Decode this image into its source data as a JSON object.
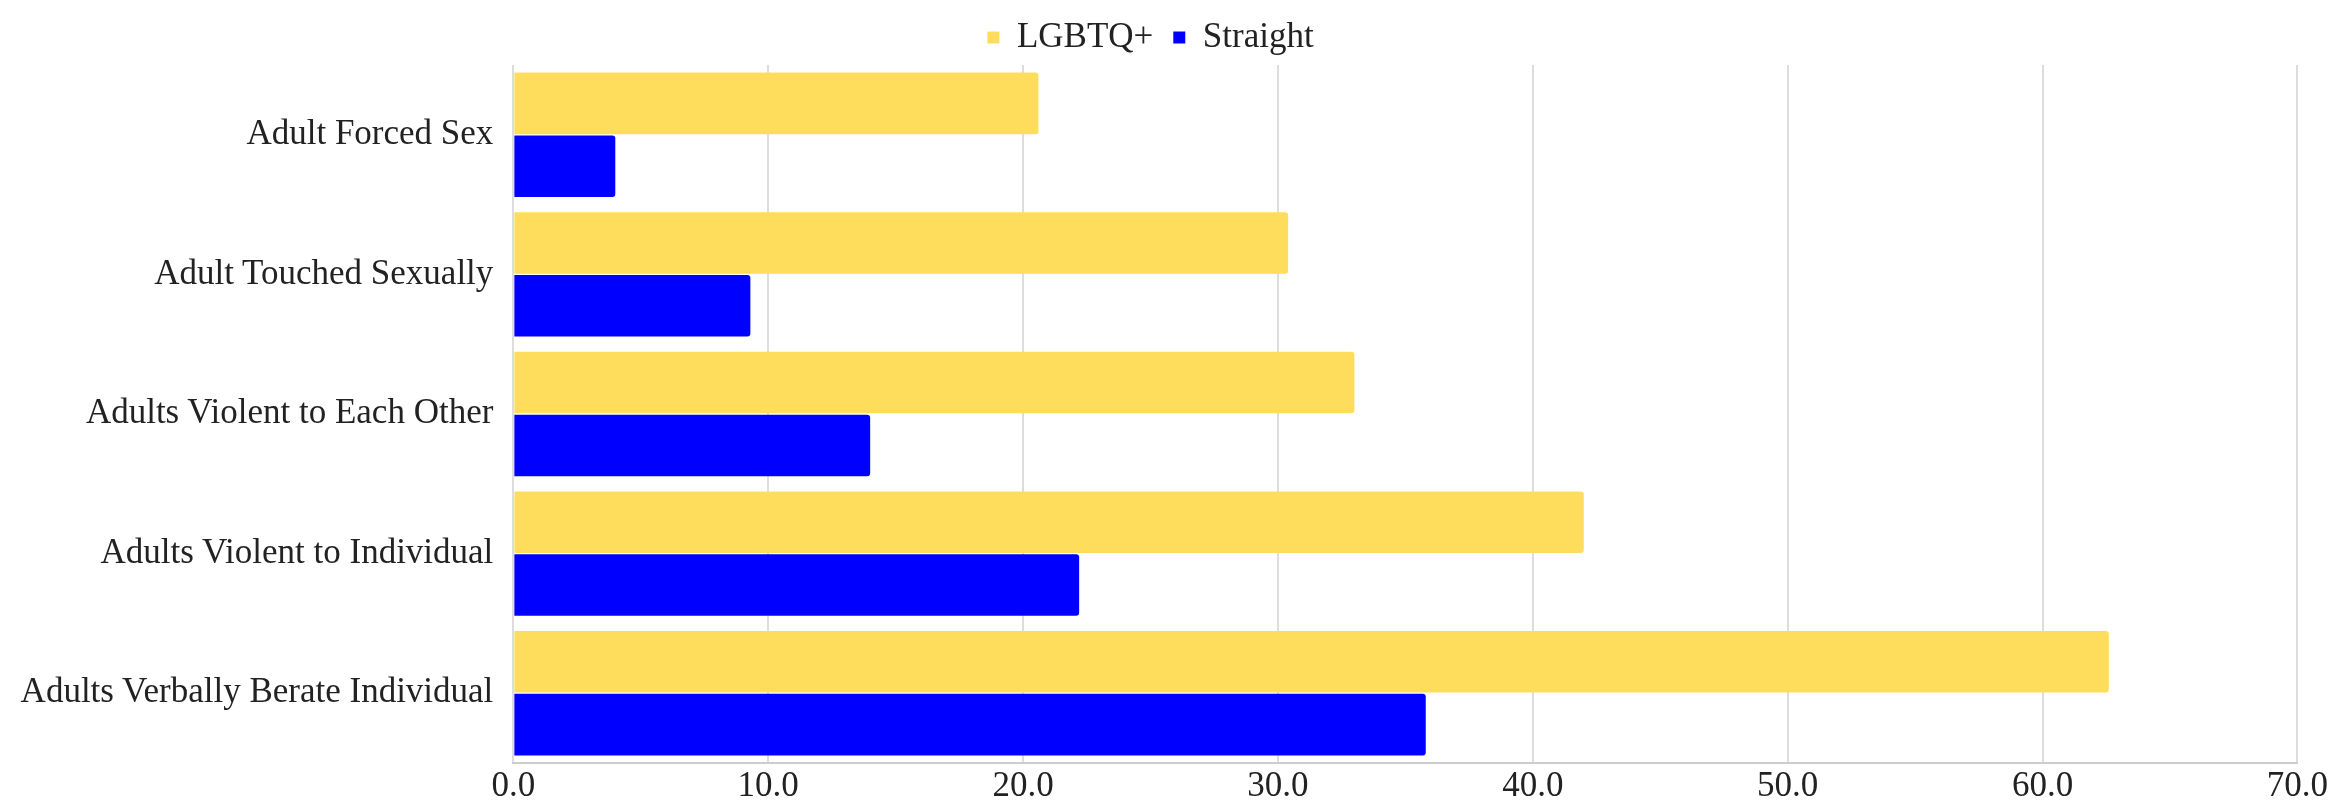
{
  "chart_data": {
    "type": "bar",
    "orientation": "horizontal",
    "categories": [
      "Adult Forced Sex",
      "Adult Touched Sexually",
      "Adults Violent to Each Other",
      "Adults Violent to Individual",
      "Adults Verbally Berate Individual"
    ],
    "series": [
      {
        "name": "LGBTQ+",
        "color": "#ffdd5c",
        "values": [
          20.6,
          30.4,
          33.0,
          42.0,
          62.6
        ]
      },
      {
        "name": "Straight",
        "color": "#0000ff",
        "values": [
          4.0,
          9.3,
          14.0,
          22.2,
          35.8
        ]
      }
    ],
    "xlim": [
      0,
      70
    ],
    "xticks": [
      {
        "value": 0,
        "label": "0.0"
      },
      {
        "value": 10,
        "label": "10.0"
      },
      {
        "value": 20,
        "label": "20.0"
      },
      {
        "value": 30,
        "label": "30.0"
      },
      {
        "value": 40,
        "label": "40.0"
      },
      {
        "value": 50,
        "label": "50.0"
      },
      {
        "value": 60,
        "label": "60.0"
      },
      {
        "value": 70,
        "label": "70.0"
      }
    ],
    "grid": "x",
    "legend": "top"
  }
}
